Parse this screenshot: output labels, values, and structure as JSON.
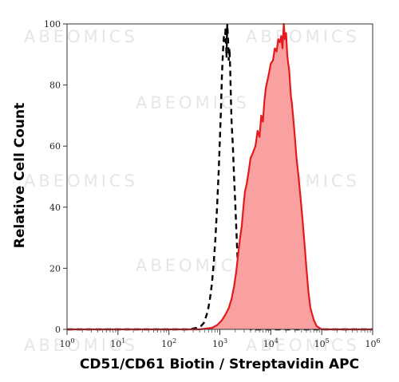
{
  "watermark": "ABEOMICS",
  "chart_data": {
    "type": "area",
    "xlabel": "CD51/CD61 Biotin / Streptavidin APC",
    "ylabel": "Relative Cell Count",
    "x_scale": "log",
    "xlim": [
      1,
      1000000
    ],
    "ylim": [
      0,
      100
    ],
    "x_ticks": [
      {
        "base": "10",
        "exp": "0",
        "value": 1
      },
      {
        "base": "10",
        "exp": "1",
        "value": 10
      },
      {
        "base": "10",
        "exp": "2",
        "value": 100
      },
      {
        "base": "10",
        "exp": "3",
        "value": 1000
      },
      {
        "base": "10",
        "exp": "4",
        "value": 10000
      },
      {
        "base": "10",
        "exp": "5",
        "value": 100000
      },
      {
        "base": "10",
        "exp": "6",
        "value": 1000000
      }
    ],
    "y_ticks": [
      0,
      20,
      40,
      60,
      80,
      100
    ],
    "grid": false,
    "series": [
      {
        "style": "dashed-black",
        "color": "#000000",
        "x": [
          1,
          100,
          250,
          350,
          420,
          480,
          520,
          580,
          640,
          700,
          760,
          820,
          880,
          950,
          1000,
          1050,
          1100,
          1150,
          1200,
          1250,
          1300,
          1350,
          1400,
          1450,
          1500,
          1550,
          1600,
          1650,
          1700,
          1800,
          1900,
          2000,
          2100,
          2200,
          2350,
          2500,
          2700,
          2900,
          3200,
          3600,
          4000,
          5000,
          1000000
        ],
        "values": [
          0,
          0,
          0,
          0.5,
          1,
          2,
          3.5,
          6,
          10,
          15,
          22,
          30,
          40,
          52,
          62,
          72,
          83,
          91,
          96,
          94,
          99,
          89,
          100,
          95,
          88,
          92,
          85,
          75,
          68,
          60,
          50,
          42,
          33,
          25,
          15,
          9,
          4,
          2,
          1,
          0.5,
          0,
          0,
          0
        ]
      },
      {
        "style": "filled-red",
        "color": "#e41a1c",
        "fill": "#f9a0a0",
        "x": [
          1,
          400,
          700,
          900,
          1100,
          1300,
          1500,
          1700,
          1900,
          2100,
          2300,
          2500,
          2700,
          2900,
          3100,
          3400,
          3700,
          4000,
          4500,
          5000,
          5500,
          6000,
          6500,
          7000,
          7500,
          8000,
          9000,
          10000,
          11000,
          12000,
          13000,
          14000,
          15000,
          16000,
          17000,
          18000,
          19000,
          20000,
          21000,
          22000,
          23000,
          24000,
          25000,
          26000,
          28000,
          30000,
          32000,
          35000,
          38000,
          42000,
          46000,
          50000,
          55000,
          60000,
          70000,
          80000,
          100000,
          1000000
        ],
        "values": [
          0,
          0,
          0.5,
          1.5,
          3,
          5,
          7,
          10,
          14,
          19,
          25,
          30,
          34,
          40,
          45,
          48,
          52,
          56,
          58,
          60,
          65,
          63,
          70,
          68,
          75,
          79,
          83,
          87,
          88,
          92,
          91,
          95,
          94,
          96,
          92,
          100,
          95,
          97,
          90,
          87,
          85,
          80,
          76,
          74,
          68,
          62,
          56,
          50,
          44,
          36,
          28,
          20,
          12,
          7,
          3,
          1,
          0,
          0
        ]
      }
    ]
  }
}
